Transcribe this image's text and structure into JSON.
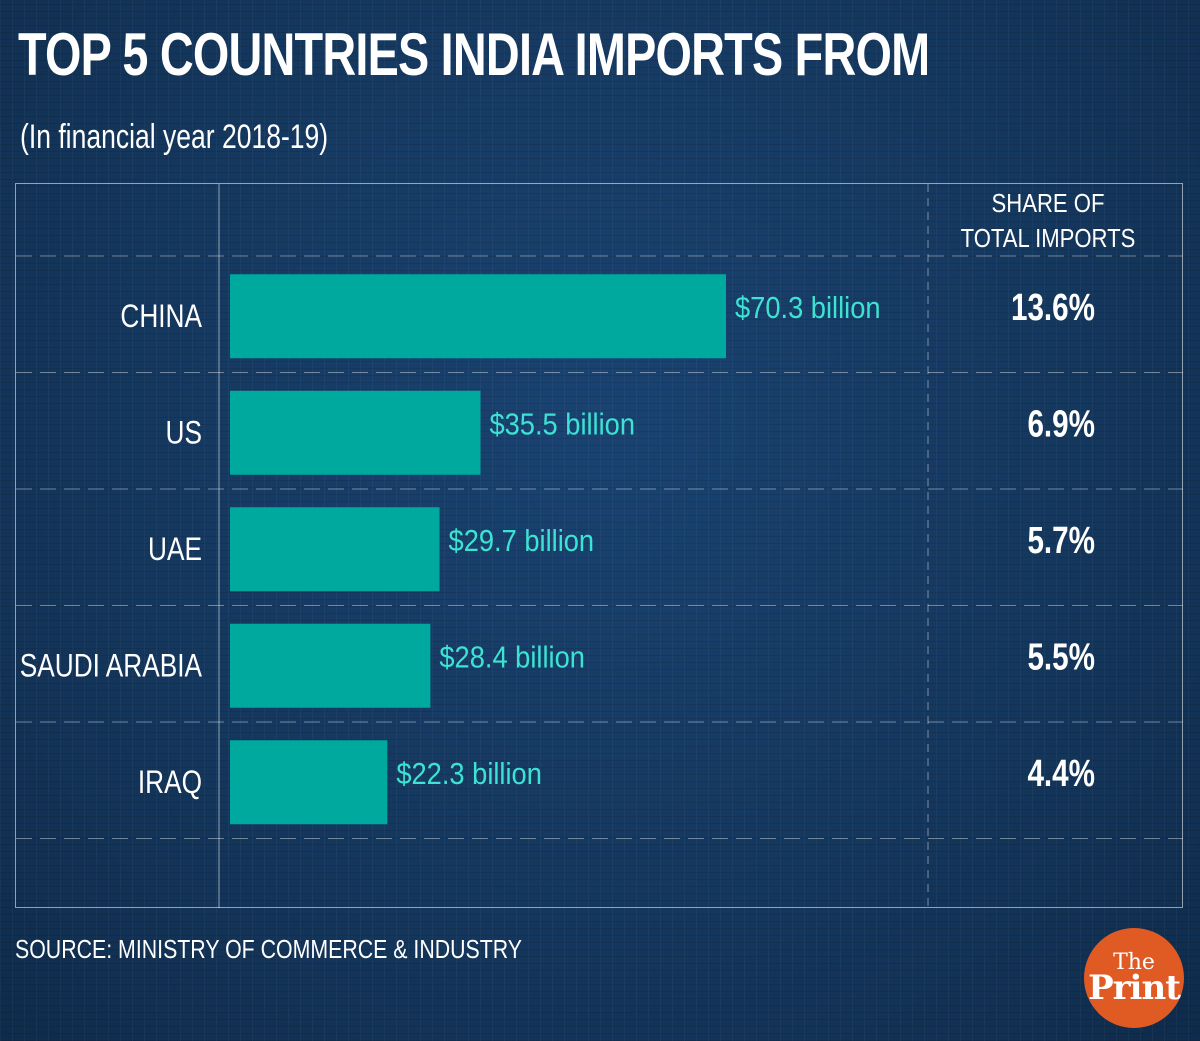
{
  "header": {
    "title": "TOP 5 COUNTRIES INDIA IMPORTS FROM",
    "subtitle": "(In financial year 2018-19)"
  },
  "chart_data": {
    "type": "bar",
    "orientation": "horizontal",
    "categories": [
      "CHINA",
      "US",
      "UAE",
      "SAUDI ARABIA",
      "IRAQ"
    ],
    "values": [
      70.3,
      35.5,
      29.7,
      28.4,
      22.3
    ],
    "value_labels": [
      "$70.3 billion",
      "$35.5 billion",
      "$29.7 billion",
      "$28.4 billion",
      "$22.3 billion"
    ],
    "share_header": [
      "SHARE OF",
      "TOTAL IMPORTS"
    ],
    "share_labels": [
      "13.6%",
      "6.9%",
      "5.7%",
      "5.5%",
      "4.4%"
    ],
    "shares": [
      13.6,
      6.9,
      5.7,
      5.5,
      4.4
    ],
    "xlim": [
      0,
      70.3
    ],
    "grid": true,
    "bar_color": "#00a99d",
    "value_label_color": "#3de3d2"
  },
  "footer": {
    "source": "SOURCE: MINISTRY OF COMMERCE & INDUSTRY",
    "logo_top": "The",
    "logo_bottom": "Print"
  },
  "colors": {
    "background": "#14375f",
    "logo": "#e05a24",
    "text": "#ffffff"
  }
}
